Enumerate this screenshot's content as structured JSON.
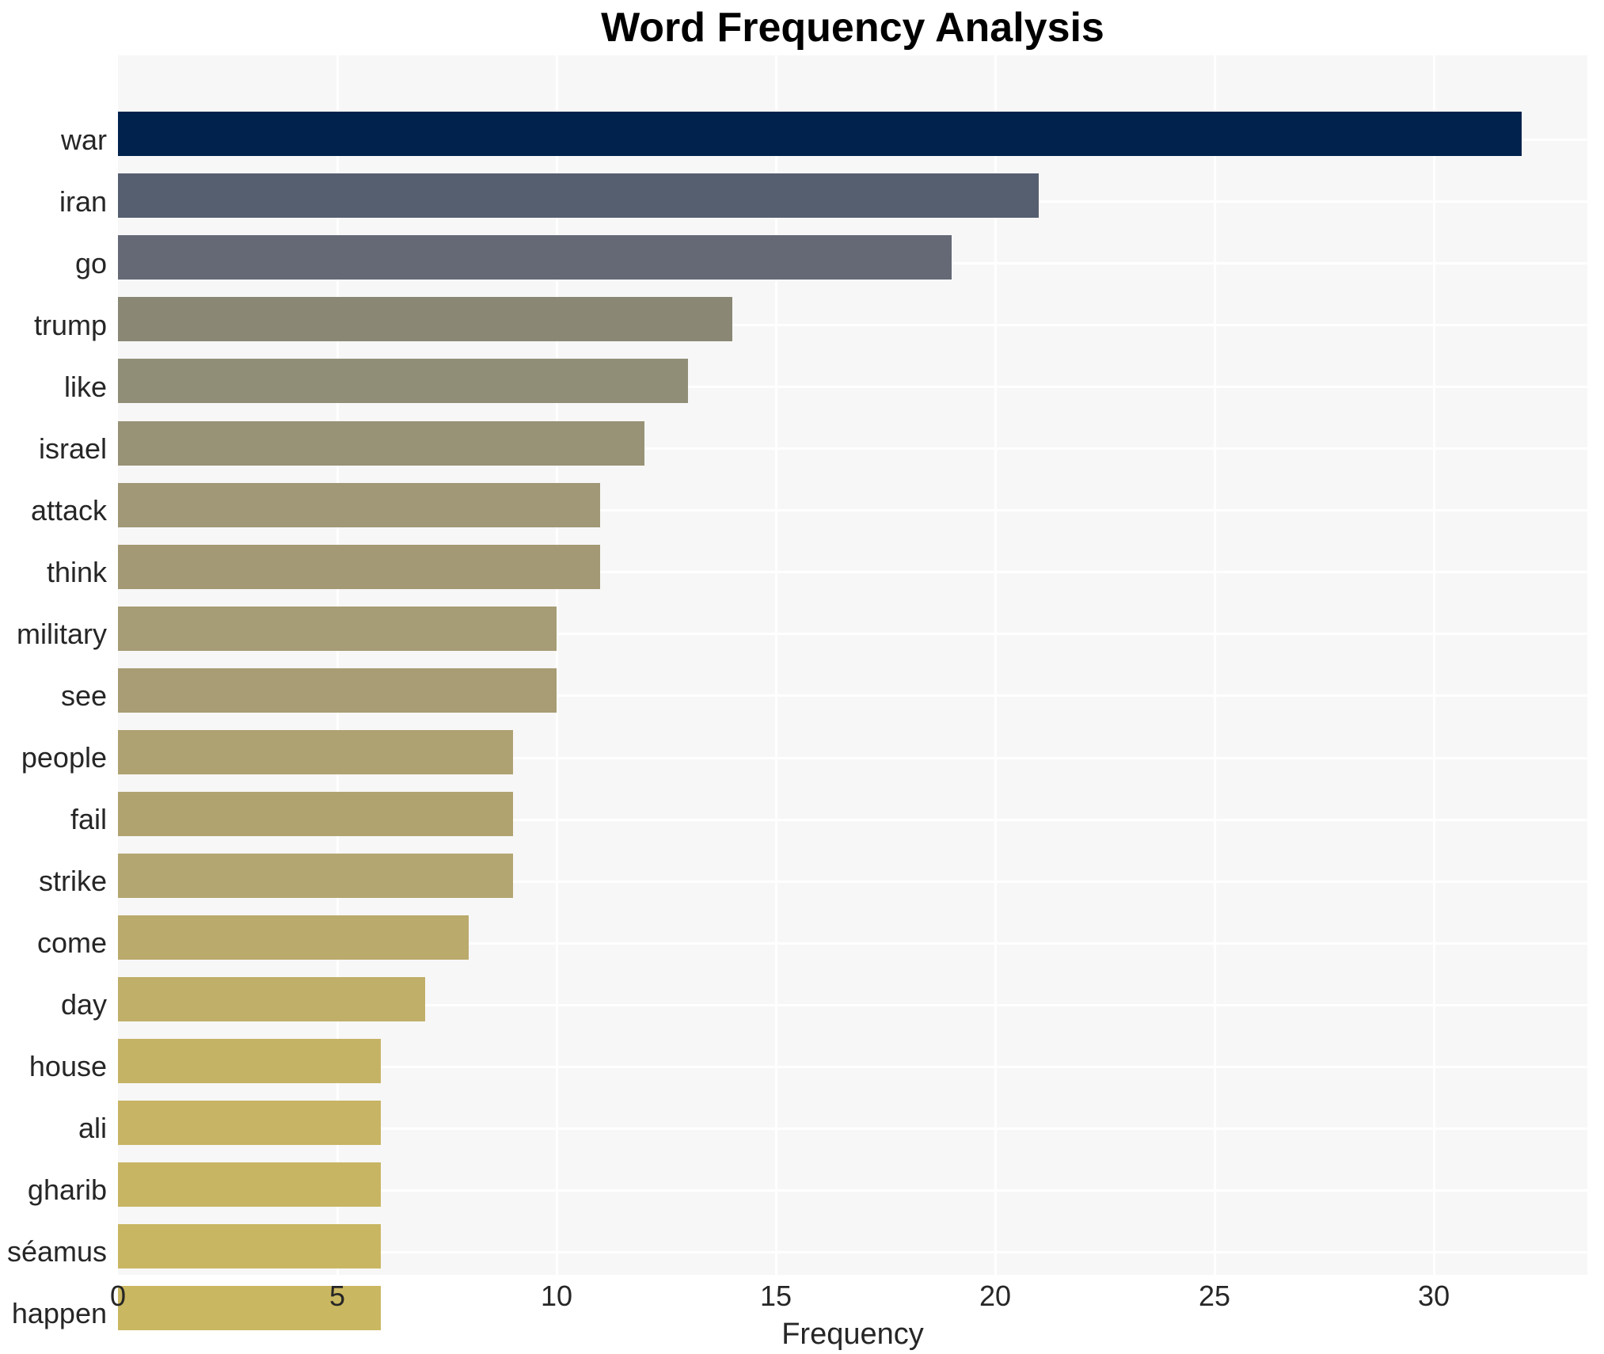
{
  "title": "Word Frequency Analysis",
  "chart_data": {
    "type": "bar",
    "orientation": "horizontal",
    "title": "Word Frequency Analysis",
    "xlabel": "Frequency",
    "ylabel": "",
    "xlim": [
      0,
      33.5
    ],
    "x_ticks": [
      0,
      5,
      10,
      15,
      20,
      25,
      30
    ],
    "grid": "both",
    "legend_position": "none",
    "categories": [
      "war",
      "iran",
      "go",
      "trump",
      "like",
      "israel",
      "attack",
      "think",
      "military",
      "see",
      "people",
      "fail",
      "strike",
      "come",
      "day",
      "house",
      "ali",
      "gharib",
      "séamus",
      "happen"
    ],
    "values": [
      32,
      21,
      19,
      14,
      13,
      12,
      11,
      11,
      10,
      10,
      9,
      9,
      9,
      8,
      7,
      6,
      6,
      6,
      6,
      6
    ],
    "bar_colors": [
      "#00224D",
      "#565F70",
      "#646975",
      "#8A8875",
      "#918E77",
      "#989277",
      "#A09876",
      "#A39974",
      "#A69C75",
      "#A89D74",
      "#AFA272",
      "#B1A370",
      "#B4A670",
      "#BAAA6C",
      "#C0AF69",
      "#C5B365",
      "#C7B464",
      "#C8B563",
      "#C9B662",
      "#CAB761"
    ]
  },
  "style": {
    "panel_bg": "#f7f7f7",
    "grid_color": "#ffffff",
    "text_color": "#262626",
    "title_color": "#000000",
    "figure_bg": "#ffffff"
  }
}
